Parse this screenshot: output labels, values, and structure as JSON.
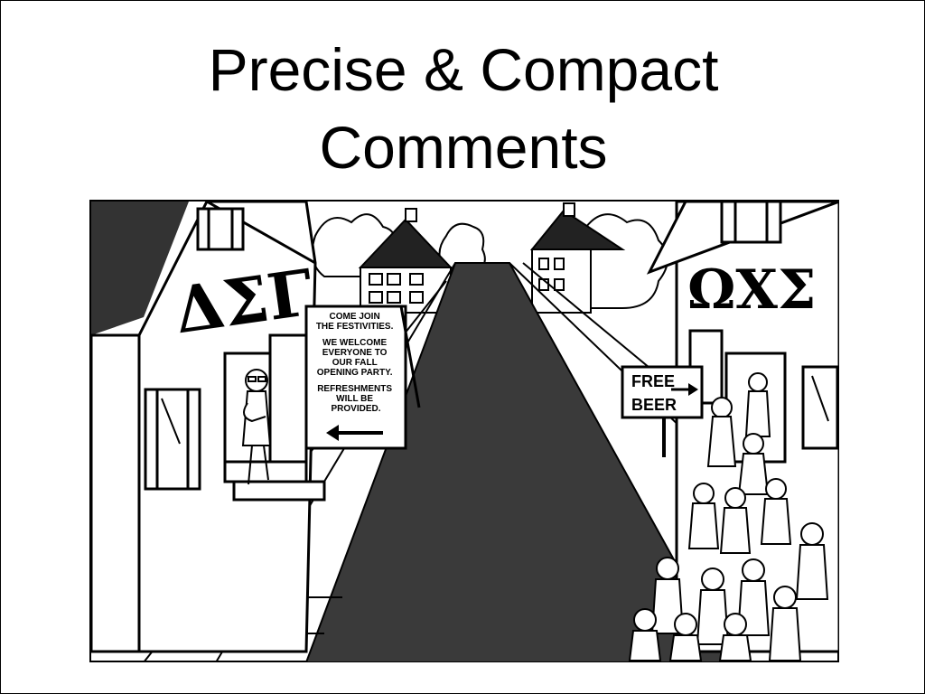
{
  "slide": {
    "title_line1": "Precise & Compact",
    "title_line2": "Comments"
  },
  "comic": {
    "left_house_letters": "ΔΣΓ",
    "right_house_letters": "ΩΧΣ",
    "left_sign_lines": [
      "COME JOIN",
      "THE FESTIVITIES.",
      "WE WELCOME",
      "EVERYONE TO",
      "OUR FALL",
      "OPENING PARTY.",
      "REFRESHMENTS",
      "WILL BE",
      "PROVIDED."
    ],
    "right_sign_line1": "FREE",
    "right_sign_line2": "BEER"
  }
}
